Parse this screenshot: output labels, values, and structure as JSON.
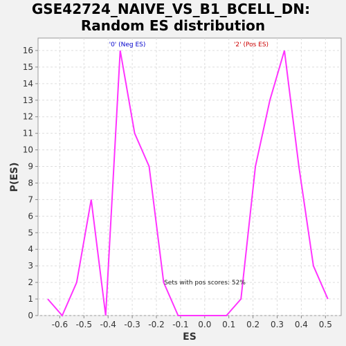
{
  "chart_data": {
    "type": "line",
    "title_line1": "GSE42724_NAIVE_VS_B1_BCELL_DN:",
    "title_line2": "Random ES distribution",
    "xlabel": "ES",
    "ylabel": "P(ES)",
    "xlim": [
      -0.69,
      0.565
    ],
    "ylim": [
      0,
      16.75
    ],
    "xticks": [
      -0.6,
      -0.5,
      -0.4,
      -0.3,
      -0.2,
      -0.1,
      0.0,
      0.1,
      0.2,
      0.3,
      0.4,
      0.5
    ],
    "xtick_labels": [
      "-0.6",
      "-0.5",
      "-0.4",
      "-0.3",
      "-0.2",
      "-0.1",
      "0.0",
      "0.1",
      "0.2",
      "0.3",
      "0.4",
      "0.5"
    ],
    "yticks": [
      0,
      1,
      2,
      3,
      4,
      5,
      6,
      7,
      8,
      9,
      10,
      11,
      12,
      13,
      14,
      15,
      16
    ],
    "ytick_labels": [
      "0",
      "1",
      "2",
      "3",
      "4",
      "5",
      "6",
      "7",
      "8",
      "9",
      "10",
      "11",
      "12",
      "13",
      "14",
      "15",
      "16"
    ],
    "grid": true,
    "series": [
      {
        "color": "#ff33ff",
        "x": [
          -0.65,
          -0.59,
          -0.53,
          -0.47,
          -0.41,
          -0.35,
          -0.29,
          -0.23,
          -0.17,
          -0.11,
          -0.05,
          0.01,
          0.09,
          0.15,
          0.21,
          0.27,
          0.33,
          0.39,
          0.45,
          0.51
        ],
        "y": [
          1,
          0,
          2,
          7,
          0,
          16,
          11,
          9,
          2,
          0,
          0,
          0,
          0,
          1,
          9,
          13,
          16,
          9,
          3,
          1
        ]
      }
    ],
    "annotations": {
      "neg_label": "'0' (Neg ES)",
      "neg_color": "#0000cc",
      "pos_label": "'2' (Pos ES)",
      "pos_color": "#cc0000",
      "score_text": "Sets with pos scores: 52%"
    }
  }
}
